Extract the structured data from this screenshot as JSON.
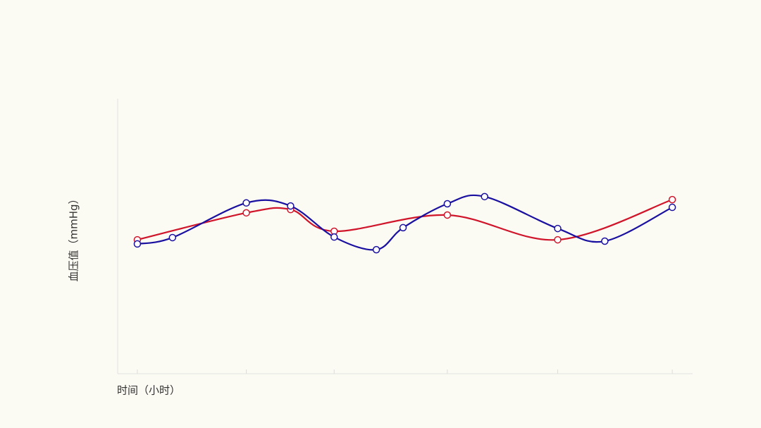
{
  "chart_data": {
    "type": "line",
    "xlabel": "时间（小时）",
    "ylabel": "血压值（mmHg）",
    "xlim": [
      -3,
      79
    ],
    "xticks": [
      0,
      15.5,
      28,
      44.1,
      59.8,
      76.1
    ],
    "ylim": [
      0,
      100
    ],
    "series": [
      {
        "name": null,
        "color": "#d0152a",
        "x": [
          0,
          15.5,
          21.8,
          28,
          44.1,
          59.8,
          76.1
        ],
        "values": [
          48.7,
          58.5,
          59.7,
          51.8,
          57.7,
          48.7,
          63.3
        ]
      },
      {
        "name": null,
        "color": "#1a10a0",
        "x": [
          0,
          5,
          15.5,
          21.8,
          28,
          34,
          37.8,
          44.1,
          49.4,
          59.8,
          66.5,
          76.1
        ],
        "values": [
          47.2,
          49.5,
          62.1,
          61,
          49.7,
          45.1,
          53.1,
          61.8,
          64.4,
          52.8,
          48.2,
          60.5
        ]
      }
    ]
  }
}
